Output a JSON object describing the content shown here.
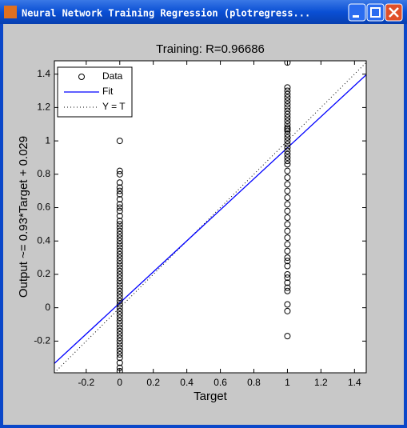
{
  "window": {
    "title": "Neural Network Training Regression (plotregress..."
  },
  "chart_data": {
    "type": "scatter",
    "title": "Training: R=0.96686",
    "xlabel": "Target",
    "ylabel": "Output ~= 0.93*Target + 0.029",
    "xlim": [
      -0.39,
      1.47
    ],
    "ylim": [
      -0.39,
      1.48
    ],
    "xticks": [
      -0.2,
      0,
      0.2,
      0.4,
      0.6,
      0.8,
      1,
      1.2,
      1.4
    ],
    "yticks": [
      -0.2,
      0,
      0.2,
      0.4,
      0.6,
      0.8,
      1,
      1.2,
      1.4
    ],
    "legend": "upper left",
    "series": [
      {
        "name": "Data",
        "color": "#000000",
        "marker": "circle",
        "x": [
          0,
          0,
          0,
          0,
          0,
          0,
          0,
          0,
          0,
          0,
          0,
          0,
          0,
          0,
          0,
          0,
          0,
          0,
          0,
          0,
          0,
          0,
          0,
          0,
          0,
          0,
          0,
          0,
          0,
          0,
          0,
          0,
          0,
          0,
          0,
          0,
          0,
          0,
          0,
          0,
          0,
          0,
          0,
          0,
          0,
          0,
          0,
          0,
          0,
          0,
          0,
          0,
          0,
          0,
          0,
          0,
          0,
          1,
          1,
          1,
          1,
          1,
          1,
          1,
          1,
          1,
          1,
          1,
          1,
          1,
          1,
          1,
          1,
          1,
          1,
          1,
          1,
          1,
          1,
          1,
          1,
          1,
          1,
          1,
          1,
          1,
          1,
          1,
          1,
          1,
          1,
          1,
          1,
          1,
          1,
          1,
          1,
          1,
          1,
          1,
          1,
          1,
          1,
          1,
          1,
          1,
          1
        ],
        "values": [
          -0.38,
          -0.36,
          -0.33,
          -0.3,
          -0.28,
          -0.26,
          -0.24,
          -0.22,
          -0.2,
          -0.18,
          -0.16,
          -0.14,
          -0.12,
          -0.1,
          -0.08,
          -0.06,
          -0.04,
          -0.02,
          0,
          0.02,
          0.04,
          0.06,
          0.08,
          0.1,
          0.12,
          0.14,
          0.16,
          0.18,
          0.2,
          0.22,
          0.24,
          0.26,
          0.28,
          0.3,
          0.32,
          0.34,
          0.36,
          0.38,
          0.4,
          0.42,
          0.44,
          0.46,
          0.48,
          0.5,
          0.52,
          0.55,
          0.58,
          0.6,
          0.62,
          0.65,
          0.68,
          0.7,
          0.72,
          0.75,
          0.8,
          0.82,
          1.0,
          -0.17,
          -0.02,
          0.02,
          0.1,
          0.12,
          0.15,
          0.18,
          0.2,
          0.25,
          0.28,
          0.3,
          0.34,
          0.38,
          0.42,
          0.46,
          0.5,
          0.54,
          0.58,
          0.62,
          0.66,
          0.7,
          0.74,
          0.78,
          0.82,
          0.86,
          0.88,
          0.9,
          0.92,
          0.94,
          0.96,
          0.98,
          1.0,
          1.02,
          1.04,
          1.06,
          1.08,
          1.1,
          1.12,
          1.14,
          1.16,
          1.18,
          1.2,
          1.22,
          1.24,
          1.26,
          1.28,
          1.3,
          1.32,
          1.47,
          1.07
        ]
      },
      {
        "name": "Fit",
        "color": "#0000ff",
        "line": "solid",
        "x": [
          -0.39,
          1.47
        ],
        "values": [
          -0.334,
          1.396
        ]
      },
      {
        "name": "Y = T",
        "color": "#000000",
        "line": "dotted",
        "x": [
          -0.39,
          1.47
        ],
        "values": [
          -0.39,
          1.47
        ]
      }
    ]
  }
}
